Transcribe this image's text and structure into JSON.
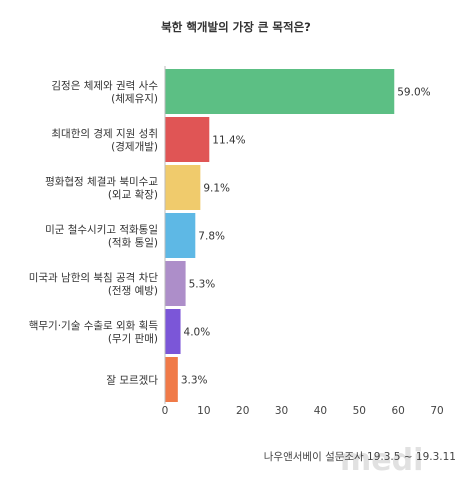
{
  "chart_data": {
    "type": "bar",
    "orientation": "horizontal",
    "title": "북한 핵개발의 가장 큰 목적은?",
    "categories": [
      [
        "김정은 체제와 권력 사수",
        "(체제유지)"
      ],
      [
        "최대한의 경제 지원 성취",
        "(경제개발)"
      ],
      [
        "평화협정 체결과 북미수교",
        "(외교 확장)"
      ],
      [
        "미군 철수시키고 적화통일",
        "(적화 통일)"
      ],
      [
        "미국과 남한의 북침 공격 차단",
        "(전쟁 예방)"
      ],
      [
        "핵무기·기술 수출로 외화 획득",
        "(무기 판매)"
      ],
      [
        "잘 모르겠다"
      ]
    ],
    "values": [
      59.0,
      11.4,
      9.1,
      7.8,
      5.3,
      4.0,
      3.3
    ],
    "value_labels": [
      "59.0%",
      "11.4%",
      "9.1%",
      "7.8%",
      "5.3%",
      "4.0%",
      "3.3%"
    ],
    "colors": [
      "#5cbf84",
      "#e05555",
      "#f0cb6c",
      "#5eb8e5",
      "#ad8ec9",
      "#7b56d8",
      "#f07a48"
    ],
    "xlim": [
      0,
      70
    ],
    "xticks": [
      0,
      10,
      20,
      30,
      40,
      50,
      60,
      70
    ],
    "grid": false,
    "source": "나우앤서베이 설문조사 19.3.5 ~ 19.3.11",
    "watermark": "medi"
  }
}
